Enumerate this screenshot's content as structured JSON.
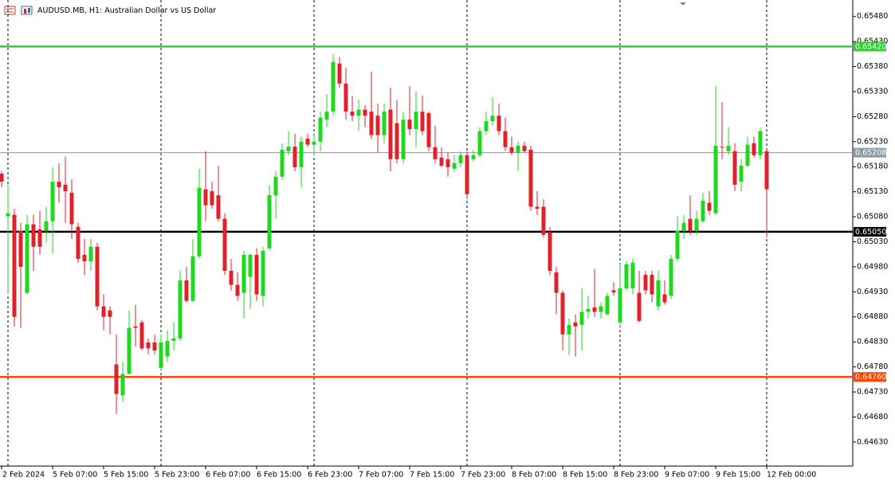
{
  "chart_data": {
    "type": "candlestick",
    "title": "AUDUSD.MB, H1:  Australian Dollar vs US Dollar",
    "up_color": "#1ed81e",
    "down_color": "#e0202a",
    "ylim": [
      0.64582,
      0.65513
    ],
    "yticks": [
      {
        "value": 0.6548,
        "label": "0.65480"
      },
      {
        "value": 0.6543,
        "label": "0.65430"
      },
      {
        "value": 0.6538,
        "label": "0.65380"
      },
      {
        "value": 0.6533,
        "label": "0.65330"
      },
      {
        "value": 0.6528,
        "label": "0.65280"
      },
      {
        "value": 0.6523,
        "label": "0.65230"
      },
      {
        "value": 0.6518,
        "label": "0.65180"
      },
      {
        "value": 0.6513,
        "label": "0.65130"
      },
      {
        "value": 0.6508,
        "label": "0.65080"
      },
      {
        "value": 0.6503,
        "label": "0.65030"
      },
      {
        "value": 0.6498,
        "label": "0.64980"
      },
      {
        "value": 0.6493,
        "label": "0.64930"
      },
      {
        "value": 0.6488,
        "label": "0.64880"
      },
      {
        "value": 0.6483,
        "label": "0.64830"
      },
      {
        "value": 0.6478,
        "label": "0.64780"
      },
      {
        "value": 0.6473,
        "label": "0.64730"
      },
      {
        "value": 0.6468,
        "label": "0.64680"
      },
      {
        "value": 0.6463,
        "label": "0.64630"
      }
    ],
    "levels": [
      {
        "value": 0.6542,
        "label": "0.65420",
        "color": "#32cd32"
      },
      {
        "value": 0.65208,
        "label": "0.65208",
        "color": "#8c9aa3"
      },
      {
        "value": 0.6505,
        "label": "0.65050",
        "color": "#000000"
      },
      {
        "value": 0.6476,
        "label": "0.64760",
        "color": "#ff4500"
      }
    ],
    "categories": [
      "2 Feb 2024",
      null,
      null,
      null,
      null,
      null,
      null,
      null,
      "5 Feb 07:00",
      null,
      null,
      null,
      null,
      null,
      null,
      null,
      "5 Feb 15:00",
      null,
      null,
      null,
      null,
      null,
      null,
      null,
      "5 Feb 23:00",
      null,
      null,
      null,
      null,
      null,
      null,
      null,
      "6 Feb 07:00",
      null,
      null,
      null,
      null,
      null,
      null,
      null,
      "6 Feb 15:00",
      null,
      null,
      null,
      null,
      null,
      null,
      null,
      "6 Feb 23:00",
      null,
      null,
      null,
      null,
      null,
      null,
      null,
      "7 Feb 07:00",
      null,
      null,
      null,
      null,
      null,
      null,
      null,
      "7 Feb 15:00",
      null,
      null,
      null,
      null,
      null,
      null,
      null,
      "7 Feb 23:00",
      null,
      null,
      null,
      null,
      null,
      null,
      null,
      "8 Feb 07:00",
      null,
      null,
      null,
      null,
      null,
      null,
      null,
      "8 Feb 15:00",
      null,
      null,
      null,
      null,
      null,
      null,
      null,
      "8 Feb 23:00",
      null,
      null,
      null,
      null,
      null,
      null,
      null,
      "9 Feb 07:00",
      null,
      null,
      null,
      null,
      null,
      null,
      null,
      "9 Feb 15:00",
      null,
      null,
      null,
      null,
      null,
      null,
      null,
      "12 Feb 00:00"
    ],
    "open": [
      0.65166,
      0.65081,
      0.65084,
      0.65052,
      0.64928,
      0.65065,
      0.65055,
      0.65052,
      0.65071,
      0.6515,
      0.65144,
      0.65128,
      0.6506,
      0.65004,
      0.64991,
      0.6502,
      0.64901,
      0.64893,
      0.64785,
      0.64723,
      0.64766,
      0.64861,
      0.64869,
      0.64829,
      0.64829,
      0.64778,
      0.64801,
      0.64832,
      0.64837,
      0.64953,
      0.64912,
      0.65001,
      0.65135,
      0.65131,
      0.65123,
      0.65076,
      0.64972,
      0.64944,
      0.64928,
      0.6496,
      0.65004,
      0.64922,
      0.65017,
      0.65123,
      0.6516,
      0.65211,
      0.6522,
      0.65179,
      0.65236,
      0.65224,
      0.6523,
      0.65274,
      0.6529,
      0.65386,
      0.65346,
      0.6529,
      0.65282,
      0.65294,
      0.6529,
      0.65282,
      0.65243,
      0.65294,
      0.65267,
      0.65195,
      0.65274,
      0.65255,
      0.6529,
      0.65287,
      0.65219,
      0.65198,
      0.65195,
      0.65176,
      0.65187,
      0.65203,
      0.65195,
      0.65203,
      0.65251,
      0.65271,
      0.65282,
      0.65251,
      0.65219,
      0.65208,
      0.65222,
      0.65214,
      0.651,
      0.651,
      0.65049,
      0.64969,
      0.64928,
      0.64845,
      0.64869,
      0.64864,
      0.6489,
      0.64899,
      0.6489,
      0.64885,
      0.64933,
      0.64869,
      0.64937,
      0.64937,
      0.64928,
      0.64964,
      0.64964,
      0.64901,
      0.64925,
      0.64922,
      0.64996,
      0.65052,
      0.65076,
      0.65052,
      0.65071,
      0.65108,
      0.65087,
      0.6522,
      0.65211,
      0.65211,
      0.6515,
      0.65182,
      0.65227,
      0.65203,
      0.65211
    ],
    "high": [
      0.65171,
      0.65144,
      0.65096,
      0.65068,
      0.65084,
      0.65084,
      0.65092,
      0.651,
      0.65179,
      0.65187,
      0.652,
      0.65155,
      0.65068,
      0.65036,
      0.65036,
      0.65028,
      0.64925,
      0.64901,
      0.64845,
      0.6479,
      0.64893,
      0.64904,
      0.64874,
      0.64837,
      0.64845,
      0.64845,
      0.64853,
      0.64869,
      0.64972,
      0.6498,
      0.65036,
      0.65176,
      0.65211,
      0.6515,
      0.65182,
      0.65087,
      0.64996,
      0.64969,
      0.65012,
      0.65007,
      0.65017,
      0.6502,
      0.65144,
      0.65171,
      0.65227,
      0.65251,
      0.65246,
      0.6524,
      0.65246,
      0.65243,
      0.6529,
      0.65325,
      0.65405,
      0.65399,
      0.65378,
      0.65322,
      0.65314,
      0.65303,
      0.6537,
      0.65306,
      0.65306,
      0.65338,
      0.65314,
      0.6529,
      0.65341,
      0.6533,
      0.65322,
      0.6529,
      0.65262,
      0.65219,
      0.65208,
      0.65203,
      0.65211,
      0.65211,
      0.65214,
      0.65259,
      0.6529,
      0.65319,
      0.65306,
      0.65278,
      0.6524,
      0.6523,
      0.6523,
      0.65222,
      0.65131,
      0.65115,
      0.6506,
      0.6498,
      0.64933,
      0.64877,
      0.64885,
      0.64937,
      0.64922,
      0.64976,
      0.64909,
      0.64928,
      0.64949,
      0.64985,
      0.64991,
      0.64996,
      0.64972,
      0.64972,
      0.64972,
      0.64972,
      0.64953,
      0.65004,
      0.65081,
      0.65084,
      0.65123,
      0.65092,
      0.65128,
      0.65131,
      0.65341,
      0.65309,
      0.65259,
      0.65227,
      0.65195,
      0.6524,
      0.6524,
      0.65259,
      0.65214
    ],
    "low": [
      0.65139,
      0.64925,
      0.64861,
      0.64858,
      0.64925,
      0.64972,
      0.65004,
      0.65028,
      0.65007,
      0.65108,
      0.65068,
      0.65036,
      0.64988,
      0.64964,
      0.64972,
      0.64893,
      0.64853,
      0.64845,
      0.64686,
      0.6471,
      0.64766,
      0.64821,
      0.64813,
      0.64805,
      0.64805,
      0.64774,
      0.6479,
      0.64813,
      0.64832,
      0.64909,
      0.64909,
      0.64996,
      0.65071,
      0.65096,
      0.65071,
      0.64964,
      0.64933,
      0.64912,
      0.64877,
      0.64896,
      0.64912,
      0.64901,
      0.65011,
      0.65076,
      0.65154,
      0.65203,
      0.65171,
      0.65139,
      0.65219,
      0.65203,
      0.65211,
      0.65259,
      0.65282,
      0.65338,
      0.65274,
      0.65271,
      0.65251,
      0.65259,
      0.65235,
      0.65208,
      0.65227,
      0.65171,
      0.65187,
      0.65187,
      0.65243,
      0.65219,
      0.65243,
      0.65211,
      0.65187,
      0.65179,
      0.6516,
      0.6517,
      0.65179,
      0.65115,
      0.6519,
      0.65198,
      0.65243,
      0.65262,
      0.65243,
      0.65211,
      0.65203,
      0.65171,
      0.65208,
      0.65092,
      0.65084,
      0.65039,
      0.64964,
      0.64885,
      0.64813,
      0.64805,
      0.64801,
      0.64813,
      0.64877,
      0.6488,
      0.64877,
      0.64885,
      0.64922,
      0.64861,
      0.64933,
      0.64925,
      0.64869,
      0.64925,
      0.64909,
      0.64893,
      0.64904,
      0.64915,
      0.64991,
      0.65036,
      0.65044,
      0.65044,
      0.65068,
      0.65084,
      0.65084,
      0.65195,
      0.65203,
      0.65131,
      0.65131,
      0.65179,
      0.65198,
      0.65195,
      0.65039
    ],
    "close": [
      0.6515,
      0.65087,
      0.6488,
      0.6498,
      0.65065,
      0.6502,
      0.6502,
      0.65071,
      0.6515,
      0.65139,
      0.65131,
      0.65065,
      0.64996,
      0.64991,
      0.6502,
      0.64901,
      0.6488,
      0.6488,
      0.64726,
      0.64766,
      0.64858,
      0.64858,
      0.64817,
      0.64817,
      0.64813,
      0.64829,
      0.64832,
      0.64837,
      0.64953,
      0.64912,
      0.65001,
      0.65138,
      0.65103,
      0.65103,
      0.65076,
      0.64972,
      0.64944,
      0.64922,
      0.65004,
      0.65004,
      0.64925,
      0.65012,
      0.65123,
      0.6516,
      0.65214,
      0.6522,
      0.65179,
      0.6523,
      0.65224,
      0.6523,
      0.65278,
      0.6529,
      0.65389,
      0.65346,
      0.6529,
      0.65282,
      0.65294,
      0.65282,
      0.65243,
      0.65243,
      0.6529,
      0.65195,
      0.65195,
      0.65274,
      0.65255,
      0.6529,
      0.65251,
      0.65219,
      0.65195,
      0.65182,
      0.65179,
      0.65187,
      0.65203,
      0.65125,
      0.65203,
      0.65251,
      0.65271,
      0.65282,
      0.65251,
      0.65219,
      0.65208,
      0.65222,
      0.65211,
      0.651,
      0.65096,
      0.65044,
      0.64972,
      0.64928,
      0.64845,
      0.64864,
      0.64861,
      0.6489,
      0.64896,
      0.6489,
      0.64901,
      0.64922,
      0.64929,
      0.64937,
      0.64985,
      0.64988,
      0.64872,
      0.64933,
      0.64925,
      0.64953,
      0.64909,
      0.64996,
      0.65052,
      0.65068,
      0.65052,
      0.65076,
      0.65112,
      0.65092,
      0.65222,
      0.65219,
      0.65222,
      0.65144,
      0.65182,
      0.65224,
      0.65203,
      0.65251,
      0.65135
    ]
  }
}
